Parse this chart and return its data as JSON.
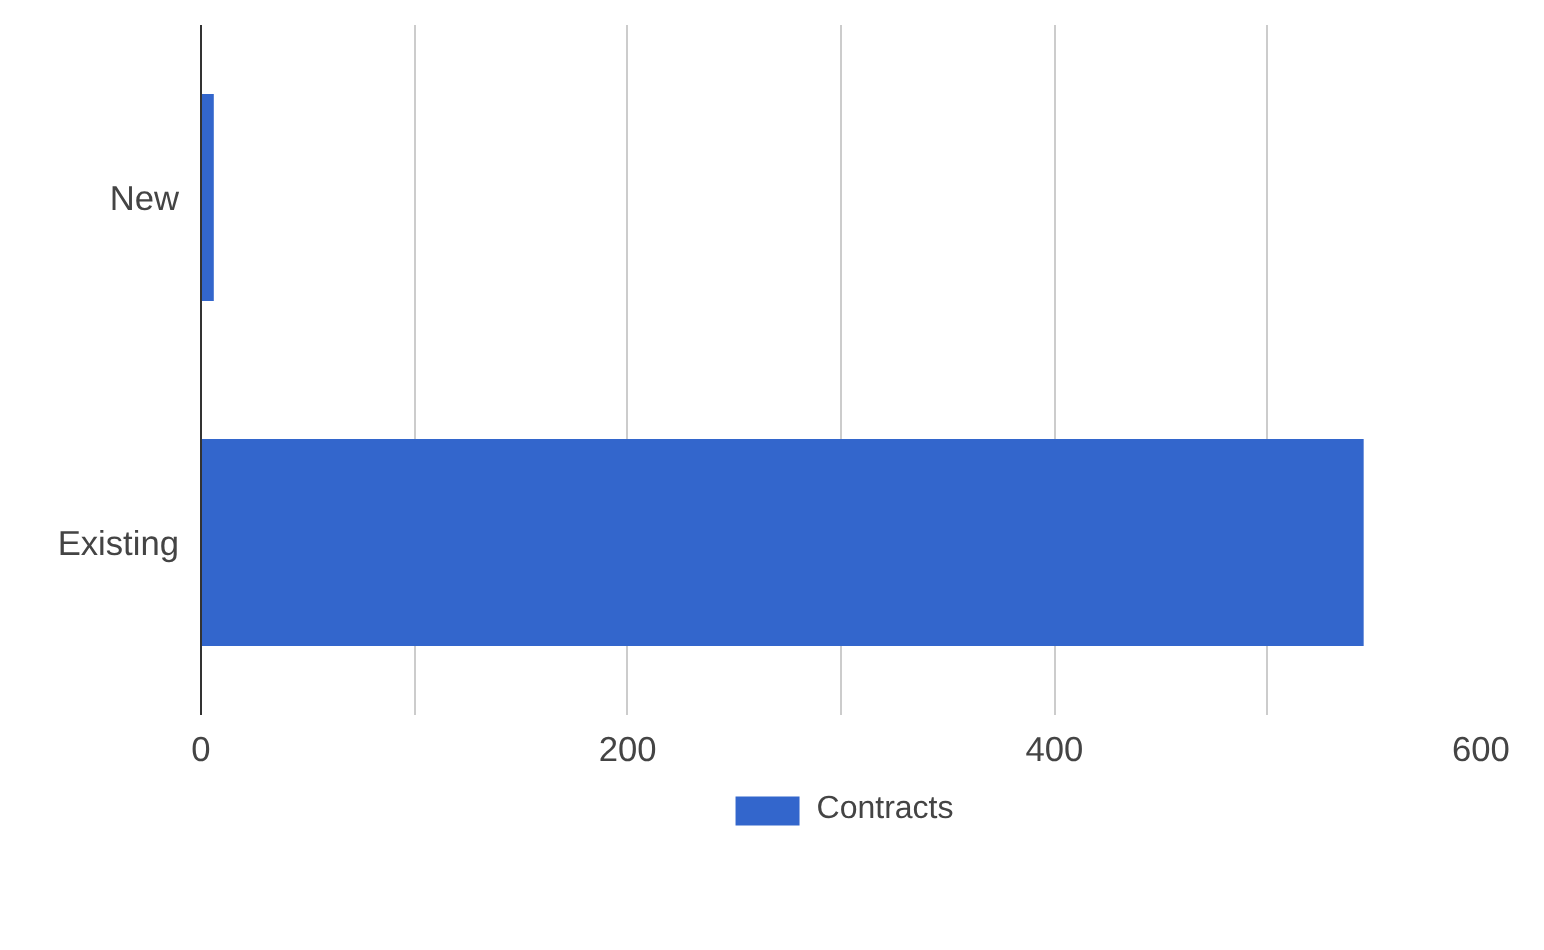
{
  "chart_data": {
    "type": "bar",
    "orientation": "horizontal",
    "categories": [
      "New",
      "Existing"
    ],
    "series": [
      {
        "name": "Contracts",
        "color": "#3366cc",
        "values": [
          6,
          545
        ]
      }
    ],
    "xlim": [
      0,
      600
    ],
    "xticks": [
      0,
      {
        "value": 100,
        "label": null
      },
      200,
      {
        "value": 300,
        "label": null
      },
      400,
      {
        "value": 500,
        "label": null
      },
      600
    ],
    "grid": "x",
    "legend": "bottom"
  }
}
